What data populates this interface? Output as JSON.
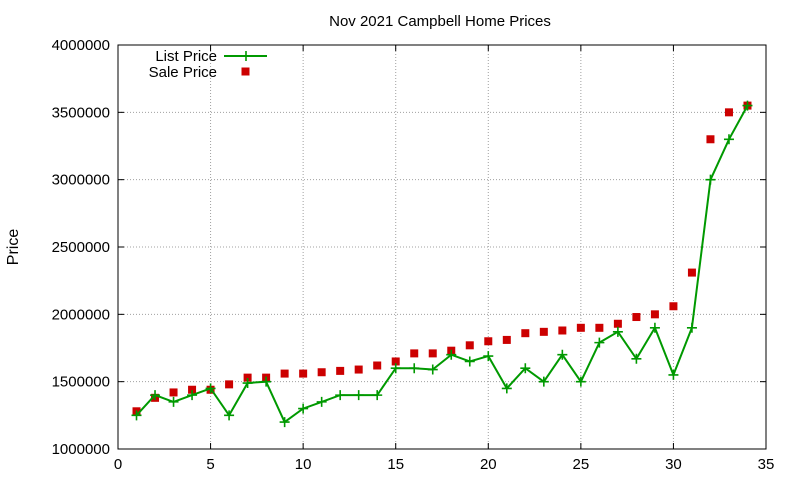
{
  "chart_data": {
    "type": "line",
    "title": "Nov 2021 Campbell Home Prices",
    "xlabel": "",
    "ylabel": "Price",
    "xlim": [
      0,
      35
    ],
    "ylim": [
      1000000,
      4000000
    ],
    "xticks": [
      0,
      5,
      10,
      15,
      20,
      25,
      30,
      35
    ],
    "yticks": [
      1000000,
      1500000,
      2000000,
      2500000,
      3000000,
      3500000,
      4000000
    ],
    "grid": true,
    "legend_position": "top-left",
    "x": [
      1,
      2,
      3,
      4,
      5,
      6,
      7,
      8,
      9,
      10,
      11,
      12,
      13,
      14,
      15,
      16,
      17,
      18,
      19,
      20,
      21,
      22,
      23,
      24,
      25,
      26,
      27,
      28,
      29,
      30,
      31,
      32,
      33,
      34
    ],
    "series": [
      {
        "name": "List Price",
        "style": "linespoints",
        "marker": "plus",
        "color": "#009900",
        "values": [
          1250000,
          1400000,
          1350000,
          1400000,
          1450000,
          1250000,
          1490000,
          1500000,
          1200000,
          1300000,
          1350000,
          1400000,
          1400000,
          1400000,
          1600000,
          1600000,
          1590000,
          1700000,
          1650000,
          1690000,
          1450000,
          1600000,
          1500000,
          1700000,
          1500000,
          1790000,
          1870000,
          1670000,
          1900000,
          1550000,
          1900000,
          3000000,
          3300000,
          3550000
        ]
      },
      {
        "name": "Sale Price",
        "style": "points",
        "marker": "square",
        "color": "#cc0000",
        "values": [
          1280000,
          1380000,
          1420000,
          1440000,
          1440000,
          1480000,
          1530000,
          1530000,
          1560000,
          1560000,
          1570000,
          1580000,
          1590000,
          1620000,
          1650000,
          1710000,
          1710000,
          1730000,
          1770000,
          1800000,
          1810000,
          1860000,
          1870000,
          1880000,
          1900000,
          1900000,
          1930000,
          1980000,
          2000000,
          2060000,
          2310000,
          3300000,
          3500000,
          3550000
        ]
      }
    ]
  }
}
